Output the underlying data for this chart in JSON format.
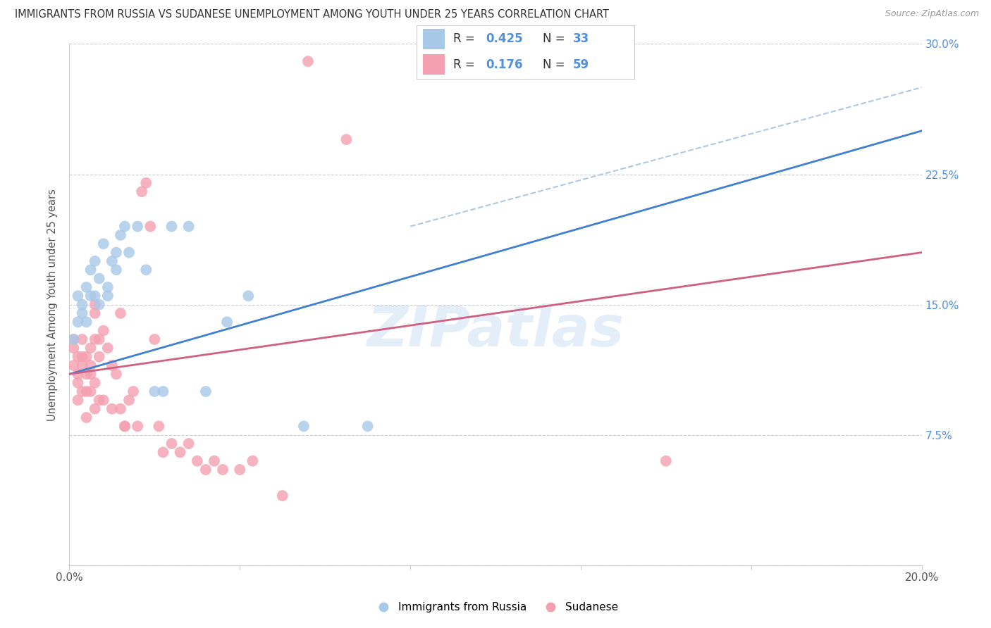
{
  "title": "IMMIGRANTS FROM RUSSIA VS SUDANESE UNEMPLOYMENT AMONG YOUTH UNDER 25 YEARS CORRELATION CHART",
  "source": "Source: ZipAtlas.com",
  "ylabel": "Unemployment Among Youth under 25 years",
  "xlabel": "",
  "xlim": [
    0.0,
    0.2
  ],
  "ylim": [
    0.0,
    0.3
  ],
  "xtick_positions": [
    0.0,
    0.04,
    0.08,
    0.12,
    0.16,
    0.2
  ],
  "xtick_labels": [
    "0.0%",
    "",
    "",
    "",
    "",
    "20.0%"
  ],
  "ytick_positions": [
    0.0,
    0.075,
    0.15,
    0.225,
    0.3
  ],
  "ytick_labels": [
    "",
    "7.5%",
    "15.0%",
    "22.5%",
    "30.0%"
  ],
  "legend_label_blue": "Immigrants from Russia",
  "legend_label_pink": "Sudanese",
  "blue_color": "#a8c8e8",
  "pink_color": "#f4a0b0",
  "trend_blue_color": "#4080d0",
  "trend_pink_color": "#d06080",
  "trend_dash_color": "#b0c8e0",
  "blue_scatter_x": [
    0.001,
    0.002,
    0.002,
    0.003,
    0.003,
    0.004,
    0.004,
    0.005,
    0.005,
    0.006,
    0.006,
    0.007,
    0.007,
    0.008,
    0.009,
    0.009,
    0.01,
    0.011,
    0.011,
    0.012,
    0.013,
    0.014,
    0.016,
    0.018,
    0.02,
    0.022,
    0.024,
    0.028,
    0.032,
    0.037,
    0.042,
    0.055,
    0.07
  ],
  "blue_scatter_y": [
    0.13,
    0.155,
    0.14,
    0.15,
    0.145,
    0.16,
    0.14,
    0.155,
    0.17,
    0.175,
    0.155,
    0.15,
    0.165,
    0.185,
    0.16,
    0.155,
    0.175,
    0.17,
    0.18,
    0.19,
    0.195,
    0.18,
    0.195,
    0.17,
    0.1,
    0.1,
    0.195,
    0.195,
    0.1,
    0.14,
    0.155,
    0.08,
    0.08
  ],
  "pink_scatter_x": [
    0.001,
    0.001,
    0.001,
    0.002,
    0.002,
    0.002,
    0.002,
    0.003,
    0.003,
    0.003,
    0.003,
    0.004,
    0.004,
    0.004,
    0.004,
    0.005,
    0.005,
    0.005,
    0.005,
    0.006,
    0.006,
    0.006,
    0.006,
    0.006,
    0.007,
    0.007,
    0.007,
    0.008,
    0.008,
    0.009,
    0.01,
    0.01,
    0.011,
    0.012,
    0.012,
    0.013,
    0.013,
    0.014,
    0.015,
    0.016,
    0.017,
    0.018,
    0.019,
    0.02,
    0.021,
    0.022,
    0.024,
    0.026,
    0.028,
    0.03,
    0.032,
    0.034,
    0.036,
    0.04,
    0.043,
    0.05,
    0.056,
    0.065,
    0.14
  ],
  "pink_scatter_y": [
    0.13,
    0.125,
    0.115,
    0.12,
    0.11,
    0.105,
    0.095,
    0.13,
    0.12,
    0.115,
    0.1,
    0.12,
    0.11,
    0.1,
    0.085,
    0.125,
    0.115,
    0.11,
    0.1,
    0.15,
    0.145,
    0.13,
    0.105,
    0.09,
    0.13,
    0.12,
    0.095,
    0.135,
    0.095,
    0.125,
    0.115,
    0.09,
    0.11,
    0.145,
    0.09,
    0.08,
    0.08,
    0.095,
    0.1,
    0.08,
    0.215,
    0.22,
    0.195,
    0.13,
    0.08,
    0.065,
    0.07,
    0.065,
    0.07,
    0.06,
    0.055,
    0.06,
    0.055,
    0.055,
    0.06,
    0.04,
    0.29,
    0.245,
    0.06
  ],
  "blue_trend_x": [
    0.0,
    0.2
  ],
  "blue_trend_y": [
    0.11,
    0.25
  ],
  "pink_trend_x": [
    0.0,
    0.2
  ],
  "pink_trend_y": [
    0.11,
    0.18
  ],
  "dash_trend_x": [
    0.08,
    0.2
  ],
  "dash_trend_y": [
    0.195,
    0.275
  ],
  "watermark": "ZIPatlas",
  "background_color": "#ffffff",
  "grid_color": "#cccccc",
  "title_color": "#333333",
  "source_color": "#999999",
  "ylabel_color": "#555555",
  "yaxis_right_color": "#5090e0",
  "legend_text_color": "#333333",
  "legend_value_color": "#5090e0"
}
